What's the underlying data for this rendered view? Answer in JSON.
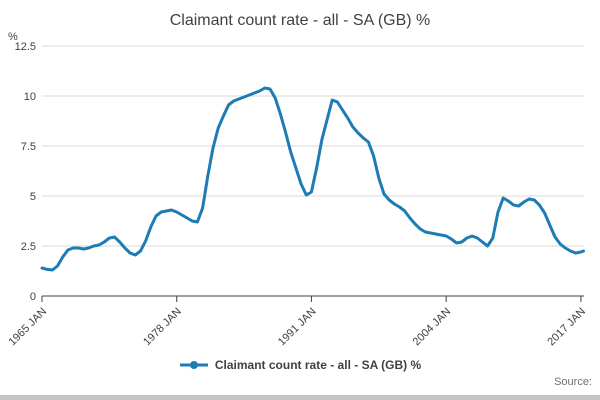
{
  "page": {
    "source_label": "Source:"
  },
  "legend": {
    "label": "Claimant count rate - all - SA (GB) %"
  },
  "chart_data": {
    "type": "line",
    "title": "Claimant count rate - all - SA (GB) %",
    "ylabel": "%",
    "xlabel": "",
    "ylim": [
      0,
      12.5
    ],
    "xlim": [
      1965,
      2017.3
    ],
    "grid": true,
    "legend_position": "bottom",
    "line_color": "#1d7cb4",
    "grid_color": "#d9d9d9",
    "axis_color": "#414042",
    "text_color": "#414042",
    "yticks": [
      {
        "v": 0,
        "label": "0"
      },
      {
        "v": 2.5,
        "label": "2.5"
      },
      {
        "v": 5,
        "label": "5"
      },
      {
        "v": 7.5,
        "label": "7.5"
      },
      {
        "v": 10,
        "label": "10"
      },
      {
        "v": 12.5,
        "label": "12.5"
      }
    ],
    "xticks": [
      {
        "v": 1965,
        "label": "1965 JAN"
      },
      {
        "v": 1978,
        "label": "1978 JAN"
      },
      {
        "v": 1991,
        "label": "1991 JAN"
      },
      {
        "v": 2004,
        "label": "2004 JAN"
      },
      {
        "v": 2017,
        "label": "2017 JAN"
      }
    ],
    "series": [
      {
        "name": "Claimant count rate - all - SA (GB) %",
        "points": [
          [
            1965.0,
            1.4
          ],
          [
            1965.5,
            1.33
          ],
          [
            1966.0,
            1.3
          ],
          [
            1966.5,
            1.5
          ],
          [
            1967.0,
            1.95
          ],
          [
            1967.5,
            2.3
          ],
          [
            1968.0,
            2.4
          ],
          [
            1968.5,
            2.4
          ],
          [
            1969.0,
            2.35
          ],
          [
            1969.5,
            2.4
          ],
          [
            1970.0,
            2.5
          ],
          [
            1970.5,
            2.55
          ],
          [
            1971.0,
            2.7
          ],
          [
            1971.5,
            2.9
          ],
          [
            1972.0,
            2.95
          ],
          [
            1972.5,
            2.7
          ],
          [
            1973.0,
            2.4
          ],
          [
            1973.5,
            2.15
          ],
          [
            1974.0,
            2.05
          ],
          [
            1974.5,
            2.25
          ],
          [
            1975.0,
            2.75
          ],
          [
            1975.5,
            3.45
          ],
          [
            1976.0,
            4.0
          ],
          [
            1976.5,
            4.2
          ],
          [
            1977.0,
            4.25
          ],
          [
            1977.5,
            4.3
          ],
          [
            1978.0,
            4.2
          ],
          [
            1978.5,
            4.05
          ],
          [
            1979.0,
            3.9
          ],
          [
            1979.5,
            3.75
          ],
          [
            1980.0,
            3.7
          ],
          [
            1980.5,
            4.4
          ],
          [
            1981.0,
            6.0
          ],
          [
            1981.5,
            7.4
          ],
          [
            1982.0,
            8.4
          ],
          [
            1982.5,
            9.0
          ],
          [
            1983.0,
            9.55
          ],
          [
            1983.5,
            9.75
          ],
          [
            1984.0,
            9.85
          ],
          [
            1984.5,
            9.95
          ],
          [
            1985.0,
            10.05
          ],
          [
            1985.5,
            10.15
          ],
          [
            1986.0,
            10.25
          ],
          [
            1986.5,
            10.4
          ],
          [
            1987.0,
            10.35
          ],
          [
            1987.5,
            9.9
          ],
          [
            1988.0,
            9.1
          ],
          [
            1988.5,
            8.2
          ],
          [
            1989.0,
            7.2
          ],
          [
            1989.5,
            6.4
          ],
          [
            1990.0,
            5.6
          ],
          [
            1990.5,
            5.05
          ],
          [
            1991.0,
            5.2
          ],
          [
            1991.5,
            6.4
          ],
          [
            1992.0,
            7.8
          ],
          [
            1992.5,
            8.8
          ],
          [
            1993.0,
            9.8
          ],
          [
            1993.5,
            9.7
          ],
          [
            1994.0,
            9.3
          ],
          [
            1994.5,
            8.9
          ],
          [
            1995.0,
            8.45
          ],
          [
            1995.5,
            8.15
          ],
          [
            1996.0,
            7.9
          ],
          [
            1996.5,
            7.7
          ],
          [
            1997.0,
            7.0
          ],
          [
            1997.5,
            5.9
          ],
          [
            1998.0,
            5.1
          ],
          [
            1998.5,
            4.8
          ],
          [
            1999.0,
            4.6
          ],
          [
            1999.5,
            4.45
          ],
          [
            2000.0,
            4.25
          ],
          [
            2000.5,
            3.9
          ],
          [
            2001.0,
            3.6
          ],
          [
            2001.5,
            3.35
          ],
          [
            2002.0,
            3.2
          ],
          [
            2002.5,
            3.15
          ],
          [
            2003.0,
            3.1
          ],
          [
            2003.5,
            3.05
          ],
          [
            2004.0,
            3.0
          ],
          [
            2004.5,
            2.85
          ],
          [
            2005.0,
            2.65
          ],
          [
            2005.5,
            2.7
          ],
          [
            2006.0,
            2.9
          ],
          [
            2006.5,
            3.0
          ],
          [
            2007.0,
            2.9
          ],
          [
            2007.5,
            2.7
          ],
          [
            2008.0,
            2.5
          ],
          [
            2008.5,
            2.9
          ],
          [
            2009.0,
            4.2
          ],
          [
            2009.5,
            4.9
          ],
          [
            2010.0,
            4.75
          ],
          [
            2010.5,
            4.55
          ],
          [
            2011.0,
            4.5
          ],
          [
            2011.5,
            4.7
          ],
          [
            2012.0,
            4.85
          ],
          [
            2012.5,
            4.8
          ],
          [
            2013.0,
            4.55
          ],
          [
            2013.5,
            4.15
          ],
          [
            2014.0,
            3.55
          ],
          [
            2014.5,
            2.95
          ],
          [
            2015.0,
            2.6
          ],
          [
            2015.5,
            2.4
          ],
          [
            2016.0,
            2.25
          ],
          [
            2016.5,
            2.15
          ],
          [
            2017.0,
            2.2
          ],
          [
            2017.25,
            2.25
          ]
        ]
      }
    ]
  }
}
